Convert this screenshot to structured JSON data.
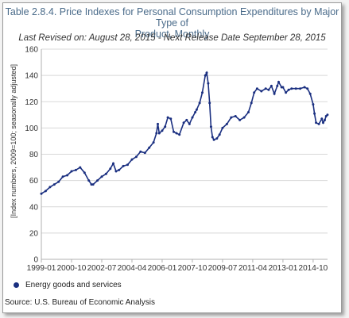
{
  "chart_data": {
    "type": "line",
    "title_lines": [
      "Table 2.8.4. Price Indexes for Personal Consumption Expenditures by Major Type of",
      "Product, Monthly"
    ],
    "subtitle": "Last Revised on: August 28, 2015 - Next Release Date September 28, 2015",
    "ylabel": "[Index numbers, 2009=100; seasonally adjusted]",
    "xlabel": "",
    "ylim": [
      0,
      160
    ],
    "yticks": [
      0,
      20,
      40,
      60,
      80,
      100,
      120,
      140,
      160
    ],
    "xlim": [
      1999.0,
      2015.5833
    ],
    "xtick_labels": [
      "1999-01",
      "2000-10",
      "2002-07",
      "2004-04",
      "2006-01",
      "2007-10",
      "2009-07",
      "2011-04",
      "2013-01",
      "2014-10"
    ],
    "xtick_values": [
      1999.0,
      2000.75,
      2002.5,
      2004.25,
      2006.0,
      2007.75,
      2009.5,
      2011.25,
      2013.0,
      2014.75
    ],
    "grid": "horizontal",
    "legend_position": "bottom-left",
    "series": [
      {
        "name": "Energy goods and services",
        "color": "#1a2f80",
        "points": [
          [
            1999.0,
            50
          ],
          [
            1999.25,
            52
          ],
          [
            1999.5,
            55
          ],
          [
            1999.75,
            57
          ],
          [
            2000.0,
            59
          ],
          [
            2000.25,
            63
          ],
          [
            2000.5,
            64
          ],
          [
            2000.75,
            67
          ],
          [
            2001.0,
            68
          ],
          [
            2001.25,
            70
          ],
          [
            2001.5,
            66
          ],
          [
            2001.75,
            60
          ],
          [
            2001.9,
            57
          ],
          [
            2002.0,
            57
          ],
          [
            2002.25,
            60
          ],
          [
            2002.5,
            63
          ],
          [
            2002.75,
            65
          ],
          [
            2003.0,
            69
          ],
          [
            2003.17,
            73
          ],
          [
            2003.33,
            67
          ],
          [
            2003.5,
            68
          ],
          [
            2003.75,
            71
          ],
          [
            2004.0,
            72
          ],
          [
            2004.25,
            76
          ],
          [
            2004.5,
            78
          ],
          [
            2004.75,
            82
          ],
          [
            2005.0,
            81
          ],
          [
            2005.25,
            85
          ],
          [
            2005.5,
            89
          ],
          [
            2005.67,
            96
          ],
          [
            2005.75,
            103
          ],
          [
            2005.83,
            96
          ],
          [
            2006.0,
            98
          ],
          [
            2006.17,
            101
          ],
          [
            2006.33,
            108
          ],
          [
            2006.5,
            107
          ],
          [
            2006.67,
            97
          ],
          [
            2006.83,
            96
          ],
          [
            2007.0,
            95
          ],
          [
            2007.25,
            104
          ],
          [
            2007.42,
            106
          ],
          [
            2007.58,
            103
          ],
          [
            2007.75,
            108
          ],
          [
            2007.92,
            112
          ],
          [
            2008.0,
            114
          ],
          [
            2008.17,
            119
          ],
          [
            2008.33,
            127
          ],
          [
            2008.5,
            140
          ],
          [
            2008.58,
            142
          ],
          [
            2008.67,
            134
          ],
          [
            2008.75,
            119
          ],
          [
            2008.83,
            101
          ],
          [
            2008.92,
            93
          ],
          [
            2009.0,
            91
          ],
          [
            2009.17,
            92
          ],
          [
            2009.33,
            95
          ],
          [
            2009.5,
            100
          ],
          [
            2009.75,
            103
          ],
          [
            2010.0,
            108
          ],
          [
            2010.25,
            109
          ],
          [
            2010.5,
            106
          ],
          [
            2010.75,
            108
          ],
          [
            2011.0,
            112
          ],
          [
            2011.17,
            119
          ],
          [
            2011.33,
            127
          ],
          [
            2011.5,
            130
          ],
          [
            2011.75,
            128
          ],
          [
            2012.0,
            130
          ],
          [
            2012.17,
            129
          ],
          [
            2012.33,
            132
          ],
          [
            2012.5,
            126
          ],
          [
            2012.67,
            132
          ],
          [
            2012.75,
            135
          ],
          [
            2012.92,
            131
          ],
          [
            2013.0,
            131
          ],
          [
            2013.17,
            127
          ],
          [
            2013.33,
            129
          ],
          [
            2013.5,
            130
          ],
          [
            2013.75,
            130
          ],
          [
            2014.0,
            130
          ],
          [
            2014.25,
            131
          ],
          [
            2014.42,
            130
          ],
          [
            2014.58,
            126
          ],
          [
            2014.75,
            118
          ],
          [
            2014.83,
            111
          ],
          [
            2014.92,
            104
          ],
          [
            2015.08,
            103
          ],
          [
            2015.25,
            107
          ],
          [
            2015.33,
            104
          ],
          [
            2015.42,
            106
          ],
          [
            2015.5,
            109
          ],
          [
            2015.58,
            110
          ]
        ]
      }
    ]
  },
  "source": "Source: U.S. Bureau of Economic Analysis"
}
